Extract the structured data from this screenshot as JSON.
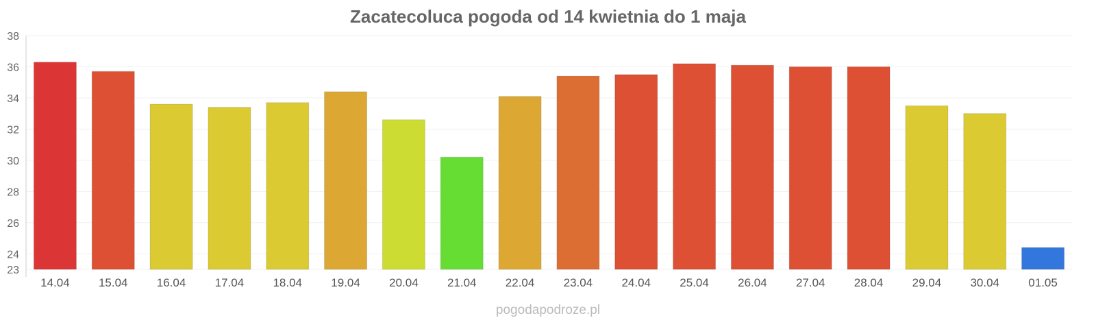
{
  "chart_data": {
    "type": "bar",
    "title": "Zacatecoluca pogoda od 14 kwietnia do 1 maja",
    "xlabel": "",
    "ylabel": "",
    "ylim": [
      23,
      38
    ],
    "yticks": [
      "38",
      "36",
      "34",
      "32",
      "30",
      "28",
      "26",
      "24",
      "23"
    ],
    "ytick_values": [
      38,
      36,
      34,
      32,
      30,
      28,
      26,
      24,
      23
    ],
    "grid": true,
    "categories": [
      "14.04",
      "15.04",
      "16.04",
      "17.04",
      "18.04",
      "19.04",
      "20.04",
      "21.04",
      "22.04",
      "23.04",
      "24.04",
      "25.04",
      "26.04",
      "27.04",
      "28.04",
      "29.04",
      "30.04",
      "01.05"
    ],
    "values": [
      36.3,
      35.7,
      33.6,
      33.4,
      33.7,
      34.4,
      32.6,
      30.2,
      34.1,
      35.4,
      35.5,
      36.2,
      36.1,
      36.0,
      36.0,
      33.5,
      33.0,
      24.4
    ],
    "colors": [
      "#dc3535",
      "#dd5033",
      "#dcca33",
      "#dcca33",
      "#dcca33",
      "#dca833",
      "#ccdc33",
      "#66dd33",
      "#dca833",
      "#dd6e33",
      "#dd5033",
      "#dd5033",
      "#dd5033",
      "#dd5033",
      "#dd5033",
      "#dcca33",
      "#dcca33",
      "#3377dd"
    ]
  },
  "watermark": "pogodapodroze.pl"
}
